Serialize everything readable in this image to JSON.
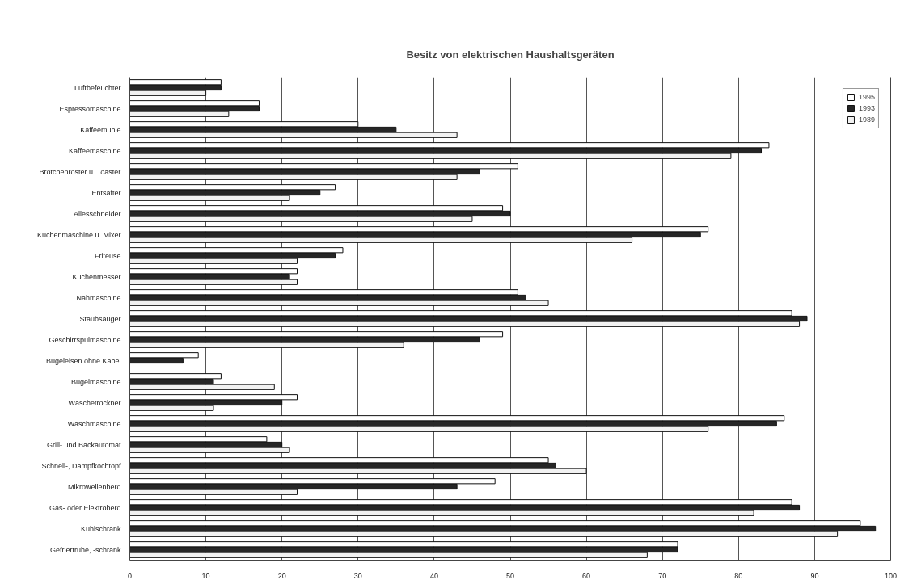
{
  "chart_data": {
    "type": "bar",
    "orientation": "horizontal",
    "title": "Besitz von elektrischen Haushaltsgeräten",
    "categories": [
      "Luftbefeuchter",
      "Espressomaschine",
      "Kaffeemühle",
      "Kaffeemaschine",
      "Brötchenröster u. Toaster",
      "Entsafter",
      "Allesschneider",
      "Küchenmaschine u. Mixer",
      "Friteuse",
      "Küchenmesser",
      "Nähmaschine",
      "Staubsauger",
      "Geschirrspülmaschine",
      "Bügeleisen ohne Kabel",
      "Bügelmaschine",
      "Wäschetrockner",
      "Waschmaschine",
      "Grill- und Backautomat",
      "Schnell-, Dampfkochtopf",
      "Mikrowellenherd",
      "Gas- oder Elektroherd",
      "Kühlschrank",
      "Gefriertruhe, -schrank"
    ],
    "series": [
      {
        "name": "1995",
        "color": "#ffffff",
        "values": [
          12,
          17,
          30,
          84,
          51,
          27,
          49,
          76,
          28,
          22,
          51,
          87,
          49,
          9,
          12,
          22,
          86,
          18,
          55,
          48,
          87,
          96,
          72
        ]
      },
      {
        "name": "1993",
        "color": "#262626",
        "values": [
          12,
          17,
          35,
          83,
          46,
          25,
          50,
          75,
          27,
          21,
          52,
          89,
          46,
          7,
          11,
          20,
          85,
          20,
          56,
          43,
          88,
          98,
          72
        ]
      },
      {
        "name": "1989",
        "color": "#f2f2f2",
        "values": [
          10,
          13,
          43,
          79,
          43,
          21,
          45,
          66,
          22,
          22,
          55,
          88,
          36,
          null,
          19,
          11,
          76,
          21,
          60,
          22,
          82,
          93,
          68
        ]
      }
    ],
    "xlim": [
      0,
      100
    ],
    "xticks": [
      0,
      10,
      20,
      30,
      40,
      50,
      60,
      70,
      80,
      90,
      100
    ],
    "grid": "x",
    "legend": "top right"
  }
}
